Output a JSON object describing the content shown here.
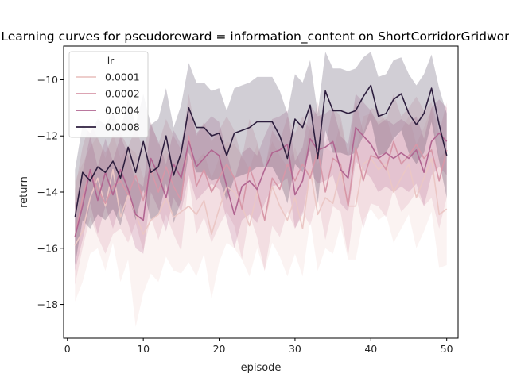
{
  "chart_data": {
    "type": "line",
    "title": "Learning curves for pseudoreward = information_content on ShortCorridorGridworld",
    "xlabel": "episode",
    "ylabel": "return",
    "xlim": [
      -0.5,
      51.5
    ],
    "ylim": [
      -19.2,
      -8.8
    ],
    "xticks": [
      0,
      10,
      20,
      30,
      40,
      50
    ],
    "yticks": [
      -18,
      -16,
      -14,
      -12,
      -10
    ],
    "grid": false,
    "legend": {
      "title": "lr",
      "placement": "top-left"
    },
    "x": [
      1,
      2,
      3,
      4,
      5,
      6,
      7,
      8,
      9,
      10,
      11,
      12,
      13,
      14,
      15,
      16,
      17,
      18,
      19,
      20,
      21,
      22,
      23,
      24,
      25,
      26,
      27,
      28,
      29,
      30,
      31,
      32,
      33,
      34,
      35,
      36,
      37,
      38,
      39,
      40,
      41,
      42,
      43,
      44,
      45,
      46,
      47,
      48,
      49,
      50
    ],
    "series": [
      {
        "name": "0.0001",
        "color": "#ebc7c5",
        "values": [
          -15.9,
          -15.4,
          -14.2,
          -13.5,
          -14.5,
          -13.2,
          -14.9,
          -14.1,
          -14.8,
          -15.5,
          -15.0,
          -14.8,
          -14.2,
          -14.9,
          -14.7,
          -14.5,
          -14.8,
          -14.3,
          -15.5,
          -14.6,
          -13.8,
          -14.0,
          -14.5,
          -15.2,
          -14.0,
          -15.0,
          -13.8,
          -14.5,
          -15.0,
          -14.2,
          -15.3,
          -13.2,
          -14.8,
          -14.2,
          -14.4,
          -13.2,
          -14.5,
          -14.5,
          -13.0,
          -12.8,
          -13.2,
          -13.0,
          -14.0,
          -13.5,
          -13.0,
          -14.2,
          -13.5,
          -12.8,
          -14.8,
          -14.6
        ],
        "upper": [
          -13.6,
          -13.0,
          -12.4,
          -12.0,
          -12.8,
          -11.9,
          -12.8,
          -12.4,
          -12.6,
          -13.5,
          -13.2,
          -12.9,
          -12.5,
          -13.0,
          -12.8,
          -12.7,
          -12.9,
          -12.6,
          -13.5,
          -12.8,
          -12.2,
          -12.3,
          -12.7,
          -13.2,
          -12.3,
          -13.1,
          -12.2,
          -12.7,
          -13.1,
          -12.4,
          -13.3,
          -11.5,
          -13.0,
          -12.4,
          -12.6,
          -11.5,
          -12.7,
          -12.6,
          -11.3,
          -11.2,
          -11.5,
          -11.3,
          -12.2,
          -11.8,
          -11.3,
          -12.3,
          -11.7,
          -11.0,
          -12.8,
          -12.5
        ],
        "lower": [
          -17.9,
          -17.2,
          -16.2,
          -16.0,
          -16.8,
          -15.8,
          -17.2,
          -16.4,
          -18.8,
          -17.6,
          -16.9,
          -17.2,
          -16.3,
          -16.8,
          -16.9,
          -16.5,
          -17.0,
          -16.2,
          -17.8,
          -16.5,
          -15.8,
          -16.0,
          -16.4,
          -17.0,
          -16.0,
          -16.8,
          -15.8,
          -16.3,
          -17.0,
          -16.2,
          -17.0,
          -15.0,
          -16.8,
          -16.0,
          -16.2,
          -15.2,
          -16.4,
          -16.4,
          -15.0,
          -14.6,
          -15.0,
          -14.8,
          -15.8,
          -15.3,
          -14.8,
          -16.0,
          -15.4,
          -14.7,
          -16.7,
          -16.6
        ]
      },
      {
        "name": "0.0002",
        "color": "#d797a8",
        "values": [
          -15.6,
          -14.2,
          -13.2,
          -13.9,
          -14.4,
          -13.8,
          -13.6,
          -14.1,
          -13.4,
          -14.3,
          -13.2,
          -14.0,
          -13.1,
          -13.8,
          -14.3,
          -12.0,
          -13.8,
          -13.2,
          -14.0,
          -13.5,
          -13.0,
          -13.5,
          -14.6,
          -13.1,
          -13.9,
          -15.0,
          -13.5,
          -13.9,
          -13.0,
          -13.6,
          -13.0,
          -13.5,
          -12.5,
          -14.0,
          -12.8,
          -13.0,
          -14.5,
          -12.4,
          -13.6,
          -12.7,
          -12.8,
          -13.2,
          -12.2,
          -13.0,
          -12.7,
          -12.3,
          -12.8,
          -12.5,
          -13.6,
          -12.5
        ],
        "upper": [
          -13.9,
          -12.4,
          -11.5,
          -12.1,
          -12.6,
          -12.0,
          -11.9,
          -12.4,
          -11.7,
          -12.5,
          -11.5,
          -12.3,
          -11.4,
          -12.0,
          -12.5,
          -10.5,
          -12.0,
          -11.5,
          -12.2,
          -11.8,
          -11.3,
          -11.8,
          -12.8,
          -11.4,
          -12.2,
          -13.2,
          -11.8,
          -12.2,
          -11.3,
          -11.9,
          -11.3,
          -11.8,
          -10.8,
          -12.3,
          -11.0,
          -11.3,
          -12.7,
          -10.7,
          -11.9,
          -11.0,
          -11.1,
          -11.5,
          -10.5,
          -11.3,
          -11.0,
          -10.6,
          -11.1,
          -10.8,
          -11.9,
          -10.8
        ],
        "lower": [
          -17.3,
          -16.0,
          -14.9,
          -15.6,
          -16.2,
          -15.5,
          -15.3,
          -15.8,
          -15.1,
          -16.1,
          -14.9,
          -15.7,
          -14.8,
          -15.5,
          -16.1,
          -13.5,
          -15.5,
          -14.9,
          -15.8,
          -15.2,
          -14.7,
          -15.2,
          -16.4,
          -14.8,
          -15.6,
          -16.8,
          -15.2,
          -15.6,
          -14.7,
          -15.3,
          -14.7,
          -15.2,
          -14.2,
          -15.7,
          -14.5,
          -14.7,
          -16.3,
          -14.1,
          -15.3,
          -14.4,
          -14.5,
          -14.9,
          -13.9,
          -14.7,
          -14.4,
          -14.0,
          -14.5,
          -14.2,
          -15.3,
          -14.2
        ]
      },
      {
        "name": "0.0004",
        "color": "#b16591",
        "values": [
          -15.6,
          -14.5,
          -13.2,
          -14.3,
          -13.3,
          -14.1,
          -13.2,
          -13.9,
          -14.8,
          -15.0,
          -12.8,
          -13.4,
          -14.2,
          -13.0,
          -13.5,
          -12.2,
          -13.1,
          -12.8,
          -12.5,
          -12.7,
          -13.8,
          -14.8,
          -13.8,
          -13.6,
          -13.9,
          -13.2,
          -12.6,
          -12.5,
          -12.3,
          -14.1,
          -13.6,
          -12.1,
          -12.5,
          -12.4,
          -12.2,
          -13.2,
          -13.5,
          -11.7,
          -12.0,
          -12.3,
          -12.8,
          -12.6,
          -12.8,
          -12.6,
          -12.8,
          -12.5,
          -13.3,
          -12.2,
          -11.9,
          -12.2
        ],
        "upper": [
          -14.4,
          -13.3,
          -12.0,
          -13.1,
          -12.1,
          -12.9,
          -12.0,
          -12.7,
          -13.6,
          -13.8,
          -11.6,
          -12.2,
          -13.0,
          -11.8,
          -12.3,
          -11.0,
          -11.9,
          -11.6,
          -11.3,
          -11.5,
          -12.6,
          -13.6,
          -12.6,
          -12.4,
          -12.7,
          -12.0,
          -11.4,
          -11.3,
          -11.1,
          -12.9,
          -12.4,
          -10.9,
          -11.3,
          -11.2,
          -11.0,
          -12.0,
          -12.3,
          -10.5,
          -10.8,
          -11.1,
          -11.6,
          -11.4,
          -11.6,
          -11.4,
          -11.6,
          -11.3,
          -12.1,
          -11.0,
          -10.7,
          -11.0
        ],
        "lower": [
          -16.8,
          -15.7,
          -14.4,
          -15.5,
          -14.5,
          -15.3,
          -14.4,
          -15.1,
          -16.0,
          -16.2,
          -14.0,
          -14.6,
          -15.4,
          -14.2,
          -14.7,
          -13.4,
          -14.3,
          -14.0,
          -13.7,
          -13.9,
          -15.0,
          -16.0,
          -15.0,
          -14.8,
          -15.1,
          -14.4,
          -13.8,
          -13.7,
          -13.5,
          -15.3,
          -14.8,
          -13.3,
          -13.7,
          -13.6,
          -13.4,
          -14.4,
          -14.7,
          -12.9,
          -13.2,
          -13.5,
          -14.0,
          -13.8,
          -14.0,
          -13.8,
          -14.0,
          -13.7,
          -14.5,
          -13.4,
          -13.1,
          -13.4
        ]
      },
      {
        "name": "0.0008",
        "color": "#2d1e3e",
        "values": [
          -14.9,
          -13.3,
          -13.6,
          -13.1,
          -13.3,
          -12.9,
          -13.5,
          -12.4,
          -13.3,
          -12.2,
          -13.3,
          -13.1,
          -12.0,
          -13.4,
          -12.6,
          -11.0,
          -11.7,
          -11.7,
          -12.0,
          -11.9,
          -12.7,
          -11.9,
          -11.8,
          -11.7,
          -11.5,
          -11.5,
          -11.5,
          -12.0,
          -12.8,
          -11.4,
          -11.7,
          -10.9,
          -12.8,
          -10.4,
          -11.1,
          -11.1,
          -11.2,
          -11.1,
          -10.6,
          -10.2,
          -11.3,
          -11.2,
          -10.7,
          -10.5,
          -11.2,
          -11.6,
          -11.2,
          -10.3,
          -11.6,
          -12.7
        ],
        "upper": [
          -13.2,
          -11.6,
          -11.9,
          -11.4,
          -11.6,
          -11.2,
          -11.8,
          -10.7,
          -11.6,
          -10.5,
          -11.6,
          -11.4,
          -10.3,
          -11.7,
          -10.9,
          -9.4,
          -10.1,
          -10.1,
          -10.4,
          -10.3,
          -11.1,
          -10.3,
          -10.2,
          -10.1,
          -9.9,
          -9.9,
          -9.9,
          -10.4,
          -11.2,
          -9.8,
          -10.1,
          -9.3,
          -11.2,
          -9.0,
          -9.6,
          -9.6,
          -9.7,
          -9.6,
          -9.2,
          -9.0,
          -9.9,
          -9.8,
          -9.3,
          -9.2,
          -9.8,
          -10.2,
          -9.8,
          -9.1,
          -10.3,
          -11.2
        ],
        "lower": [
          -16.6,
          -15.0,
          -15.3,
          -14.8,
          -15.0,
          -14.6,
          -15.2,
          -14.1,
          -15.0,
          -13.9,
          -15.0,
          -14.8,
          -13.7,
          -15.1,
          -14.3,
          -12.6,
          -13.3,
          -13.3,
          -13.6,
          -13.5,
          -14.3,
          -13.5,
          -13.4,
          -13.3,
          -13.1,
          -13.1,
          -13.1,
          -13.6,
          -14.4,
          -13.0,
          -13.3,
          -12.5,
          -14.4,
          -11.8,
          -12.6,
          -12.6,
          -12.7,
          -12.6,
          -12.0,
          -11.4,
          -12.7,
          -12.6,
          -12.1,
          -11.8,
          -12.6,
          -13.0,
          -12.6,
          -11.5,
          -12.9,
          -14.2
        ]
      }
    ]
  }
}
